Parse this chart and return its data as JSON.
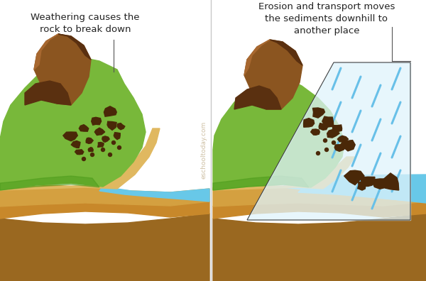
{
  "bg_color": "#ffffff",
  "left_label": "Weathering causes the\nrock to break down",
  "right_label": "Erosion and transport moves\nthe sediments downhill to\nanother place",
  "watermark": "eschooltoday.com",
  "colors": {
    "ground_light": "#d4a040",
    "ground_mid": "#c8882a",
    "ground_dark": "#9a6820",
    "grass_green": "#78b83a",
    "grass_dark": "#4a9a1a",
    "rock_brown": "#8B5520",
    "rock_dark": "#5a3010",
    "rock_light": "#a86830",
    "water_blue": "#68c8e8",
    "rain_blue": "#78c8f0",
    "rain_light": "#b8e8f8",
    "debris_dark": "#4a2808",
    "debris_mid": "#6a3810",
    "sand_light": "#e0b860",
    "sand_mid": "#c89838"
  }
}
